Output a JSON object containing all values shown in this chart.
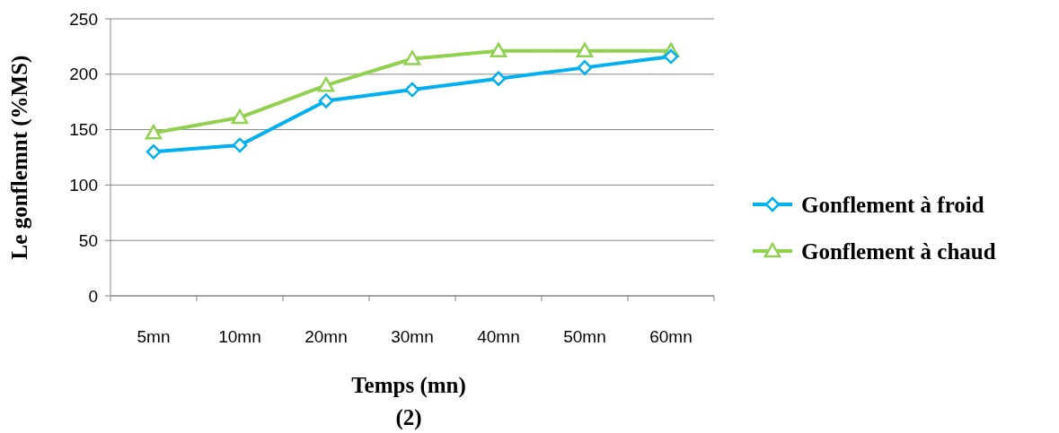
{
  "chart_data": {
    "type": "line",
    "xlabel": "Temps (mn)",
    "ylabel": "Le gonflemnt (%MS)",
    "annotations": [
      "(2)"
    ],
    "categories": [
      "5mn",
      "10mn",
      "20mn",
      "30mn",
      "40mn",
      "50mn",
      "60mn"
    ],
    "series": [
      {
        "name": "Gonflement à froid",
        "color": "#00b0f0",
        "marker": "diamond",
        "values": [
          130,
          136,
          176,
          186,
          196,
          206,
          216
        ]
      },
      {
        "name": "Gonflement à chaud",
        "color": "#92d050",
        "marker": "triangle",
        "values": [
          147,
          161,
          190,
          214,
          221,
          221,
          221
        ]
      }
    ],
    "ylim": [
      0,
      250
    ],
    "yticks": [
      0,
      50,
      100,
      150,
      200,
      250
    ],
    "grid": "y",
    "legend": "right",
    "line_style": "solid"
  }
}
